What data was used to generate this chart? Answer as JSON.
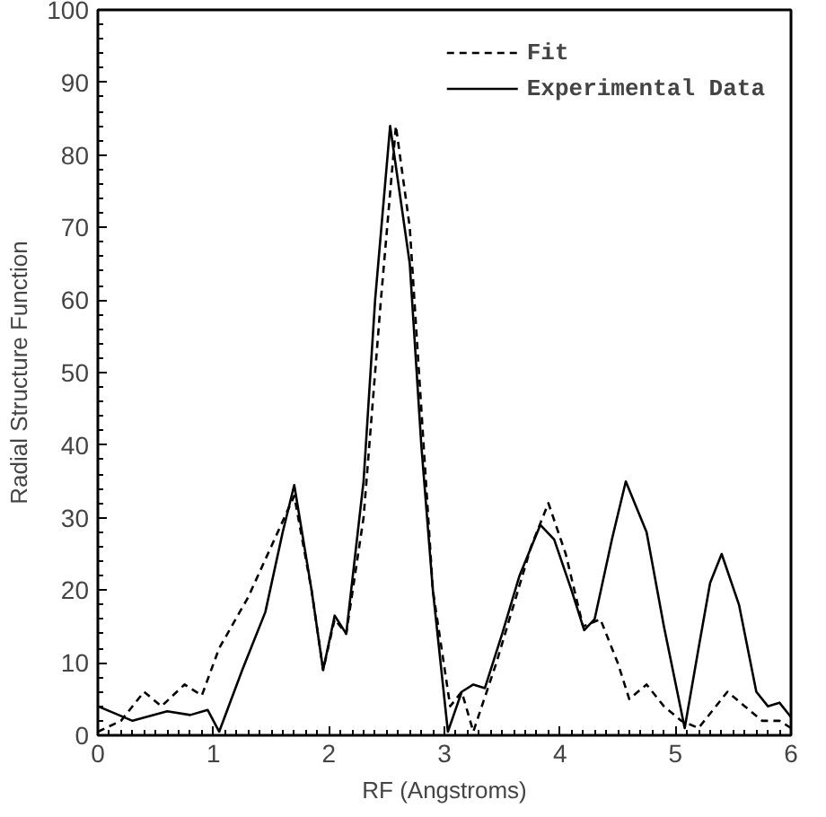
{
  "chart_data": {
    "type": "line",
    "xlabel": "RF (Angstroms)",
    "ylabel": "Radial Structure Function",
    "xlim": [
      0,
      6
    ],
    "ylim": [
      0,
      100
    ],
    "xticks": [
      0,
      1,
      2,
      3,
      4,
      5,
      6
    ],
    "yticks": [
      0,
      10,
      20,
      30,
      40,
      50,
      60,
      70,
      80,
      90,
      100
    ],
    "legend": "top right",
    "grid": false,
    "series": [
      {
        "name": "Fit",
        "color": "#000000",
        "line_style": "dashed",
        "x": [
          0,
          0.2,
          0.4,
          0.55,
          0.75,
          0.9,
          1.05,
          1.3,
          1.5,
          1.7,
          1.85,
          1.95,
          2.05,
          2.15,
          2.3,
          2.45,
          2.58,
          2.7,
          2.8,
          2.9,
          3.05,
          3.15,
          3.25,
          3.45,
          3.6,
          3.75,
          3.9,
          4.05,
          4.2,
          4.35,
          4.5,
          4.6,
          4.75,
          4.9,
          5.05,
          5.2,
          5.3,
          5.45,
          5.6,
          5.75,
          5.9,
          6
        ],
        "values": [
          0.5,
          2,
          6,
          4,
          7,
          5.5,
          12,
          19,
          26,
          33,
          20,
          9,
          16,
          14,
          30,
          60,
          84,
          70,
          45,
          20,
          4,
          6,
          0.5,
          10,
          18,
          26,
          32,
          25,
          15,
          16,
          10,
          5,
          7,
          4,
          2,
          1,
          3,
          6,
          4,
          2,
          2,
          1
        ]
      },
      {
        "name": "Experimental Data",
        "color": "#000000",
        "line_style": "solid",
        "x": [
          0,
          0.3,
          0.6,
          0.8,
          0.95,
          1.05,
          1.25,
          1.45,
          1.6,
          1.7,
          1.85,
          1.95,
          2.05,
          2.15,
          2.3,
          2.4,
          2.53,
          2.7,
          2.8,
          2.9,
          3.03,
          3.15,
          3.25,
          3.35,
          3.5,
          3.65,
          3.83,
          3.95,
          4.1,
          4.21,
          4.3,
          4.45,
          4.57,
          4.75,
          4.9,
          5.08,
          5.2,
          5.3,
          5.4,
          5.55,
          5.7,
          5.8,
          5.9,
          6
        ],
        "values": [
          4,
          2,
          3.3,
          2.8,
          3.5,
          0.5,
          9,
          17,
          28,
          34.5,
          20,
          9,
          16.5,
          14,
          35,
          60,
          84,
          65,
          40,
          20,
          0.5,
          6,
          7,
          6.5,
          14,
          22,
          29,
          27,
          20,
          14.5,
          16,
          27,
          35,
          28,
          15,
          1,
          12,
          21,
          25,
          18,
          6,
          4,
          4.5,
          2.5
        ]
      }
    ]
  }
}
